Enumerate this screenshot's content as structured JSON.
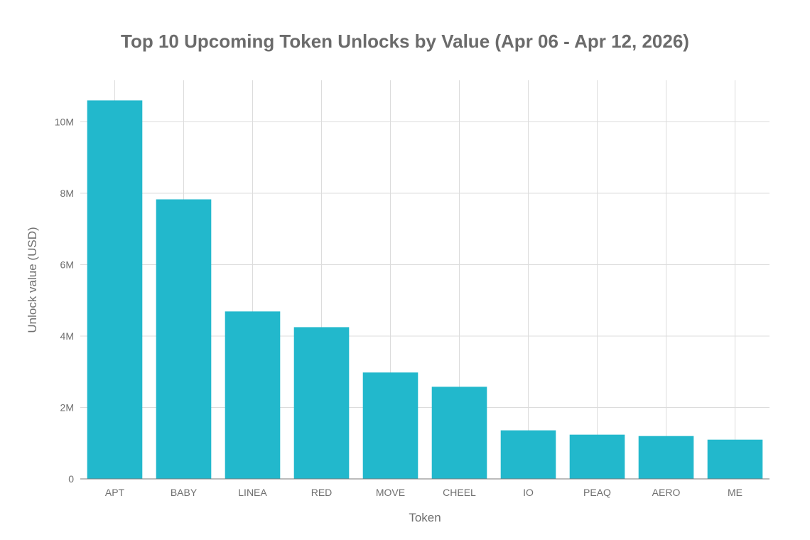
{
  "chart_data": {
    "type": "bar",
    "title": "Top 10 Upcoming Token Unlocks by Value (Apr 06 - Apr 12, 2026)",
    "xlabel": "Token",
    "ylabel": "Unlock value (USD)",
    "categories": [
      "APT",
      "BABY",
      "LINEA",
      "RED",
      "MOVE",
      "CHEEL",
      "IO",
      "PEAQ",
      "AERO",
      "ME"
    ],
    "values": [
      10600000,
      7830000,
      4690000,
      4250000,
      2980000,
      2580000,
      1360000,
      1240000,
      1200000,
      1100000
    ],
    "ylim": [
      0,
      11000000
    ],
    "yticks": [
      0,
      2000000,
      4000000,
      6000000,
      8000000,
      10000000
    ],
    "ytick_labels": [
      "0",
      "2M",
      "4M",
      "6M",
      "8M",
      "10M"
    ],
    "grid": true,
    "bar_color": "#22b8cc"
  }
}
